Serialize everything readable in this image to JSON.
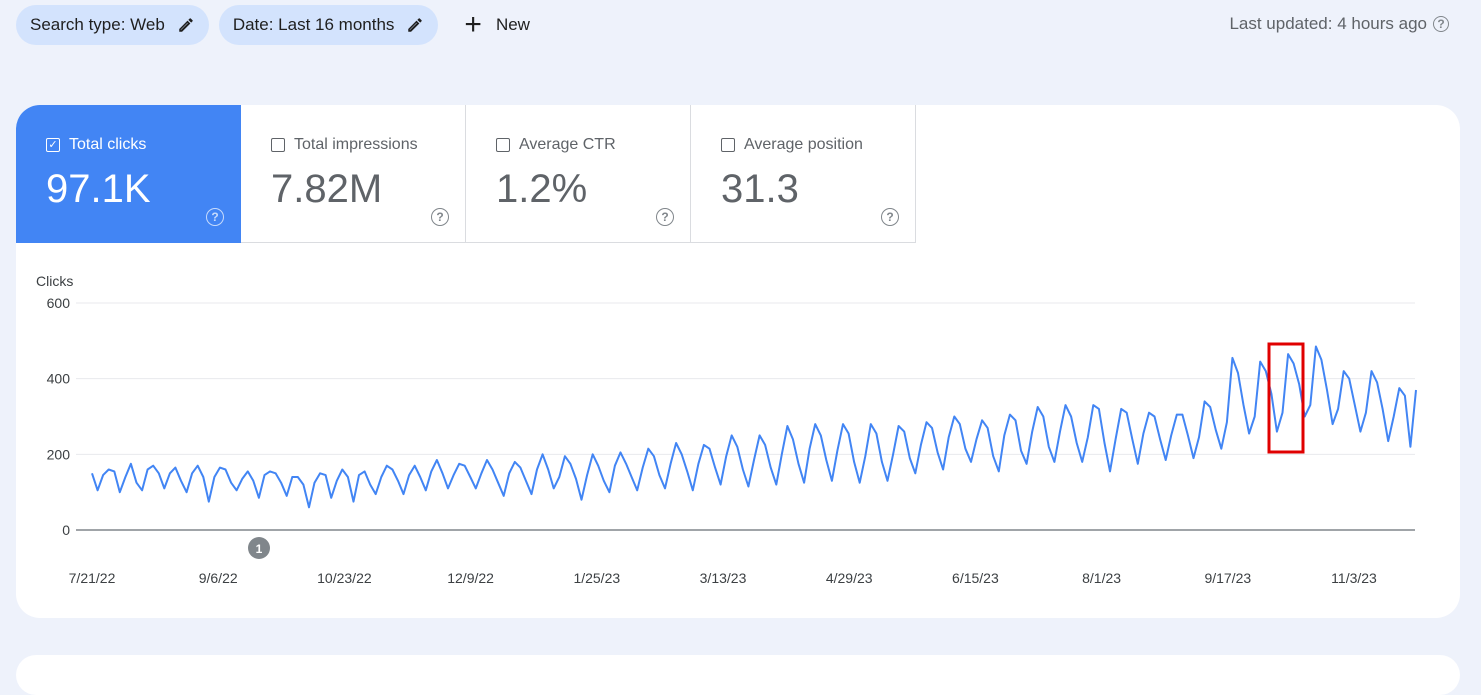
{
  "filters": [
    {
      "label": "Search type: Web"
    },
    {
      "label": "Date: Last 16 months"
    }
  ],
  "new_label": "New",
  "last_updated": "Last updated: 4 hours ago",
  "metrics": [
    {
      "label": "Total clicks",
      "value": "97.1K",
      "checked": true
    },
    {
      "label": "Total impressions",
      "value": "7.82M",
      "checked": false
    },
    {
      "label": "Average CTR",
      "value": "1.2%",
      "checked": false
    },
    {
      "label": "Average position",
      "value": "31.3",
      "checked": false
    }
  ],
  "colors": {
    "accent": "#4285f4",
    "line": "#4285f4",
    "highlight": "#e00000"
  },
  "annotation_marker": "1",
  "chart_data": {
    "type": "line",
    "ylabel": "Clicks",
    "yticks": [
      0,
      200,
      400,
      600
    ],
    "ylim": [
      0,
      600
    ],
    "x_tick_labels": [
      "7/21/22",
      "9/6/22",
      "10/23/22",
      "12/9/22",
      "1/25/23",
      "3/13/23",
      "4/29/23",
      "6/15/23",
      "8/1/23",
      "9/17/23",
      "11/3/23"
    ],
    "x_start": "7/21/22",
    "x_end": "11/19/23",
    "grid": true,
    "series": [
      {
        "values": [
          150,
          105,
          145,
          160,
          155,
          100,
          140,
          175,
          125,
          105,
          160,
          170,
          150,
          110,
          150,
          165,
          130,
          100,
          150,
          170,
          140,
          75,
          140,
          165,
          160,
          125,
          105,
          135,
          155,
          130,
          85,
          145,
          155,
          150,
          125,
          90,
          140,
          140,
          120,
          60,
          125,
          150,
          145,
          85,
          130,
          160,
          140,
          75,
          145,
          155,
          120,
          95,
          140,
          170,
          160,
          130,
          95,
          145,
          170,
          140,
          105,
          155,
          185,
          150,
          110,
          145,
          175,
          170,
          140,
          110,
          150,
          185,
          160,
          125,
          90,
          150,
          180,
          165,
          130,
          95,
          160,
          200,
          160,
          110,
          140,
          195,
          175,
          135,
          80,
          145,
          200,
          170,
          130,
          100,
          170,
          205,
          175,
          140,
          105,
          165,
          215,
          195,
          145,
          110,
          175,
          230,
          200,
          155,
          105,
          175,
          225,
          215,
          165,
          120,
          195,
          250,
          220,
          160,
          115,
          185,
          250,
          225,
          165,
          120,
          200,
          275,
          240,
          175,
          125,
          215,
          280,
          250,
          185,
          130,
          210,
          280,
          255,
          180,
          125,
          195,
          280,
          255,
          180,
          130,
          200,
          275,
          260,
          190,
          150,
          225,
          285,
          270,
          205,
          160,
          245,
          300,
          280,
          215,
          180,
          240,
          290,
          270,
          195,
          155,
          250,
          305,
          290,
          210,
          175,
          260,
          325,
          300,
          220,
          180,
          260,
          330,
          300,
          230,
          180,
          245,
          330,
          320,
          230,
          155,
          240,
          320,
          310,
          240,
          175,
          255,
          310,
          300,
          240,
          185,
          250,
          305,
          305,
          250,
          190,
          245,
          340,
          325,
          265,
          215,
          285,
          455,
          415,
          330,
          255,
          300,
          445,
          420,
          360,
          260,
          310,
          465,
          440,
          385,
          300,
          330,
          485,
          450,
          370,
          280,
          320,
          420,
          400,
          330,
          260,
          310,
          420,
          390,
          320,
          235,
          300,
          375,
          355,
          220,
          370
        ]
      }
    ]
  }
}
